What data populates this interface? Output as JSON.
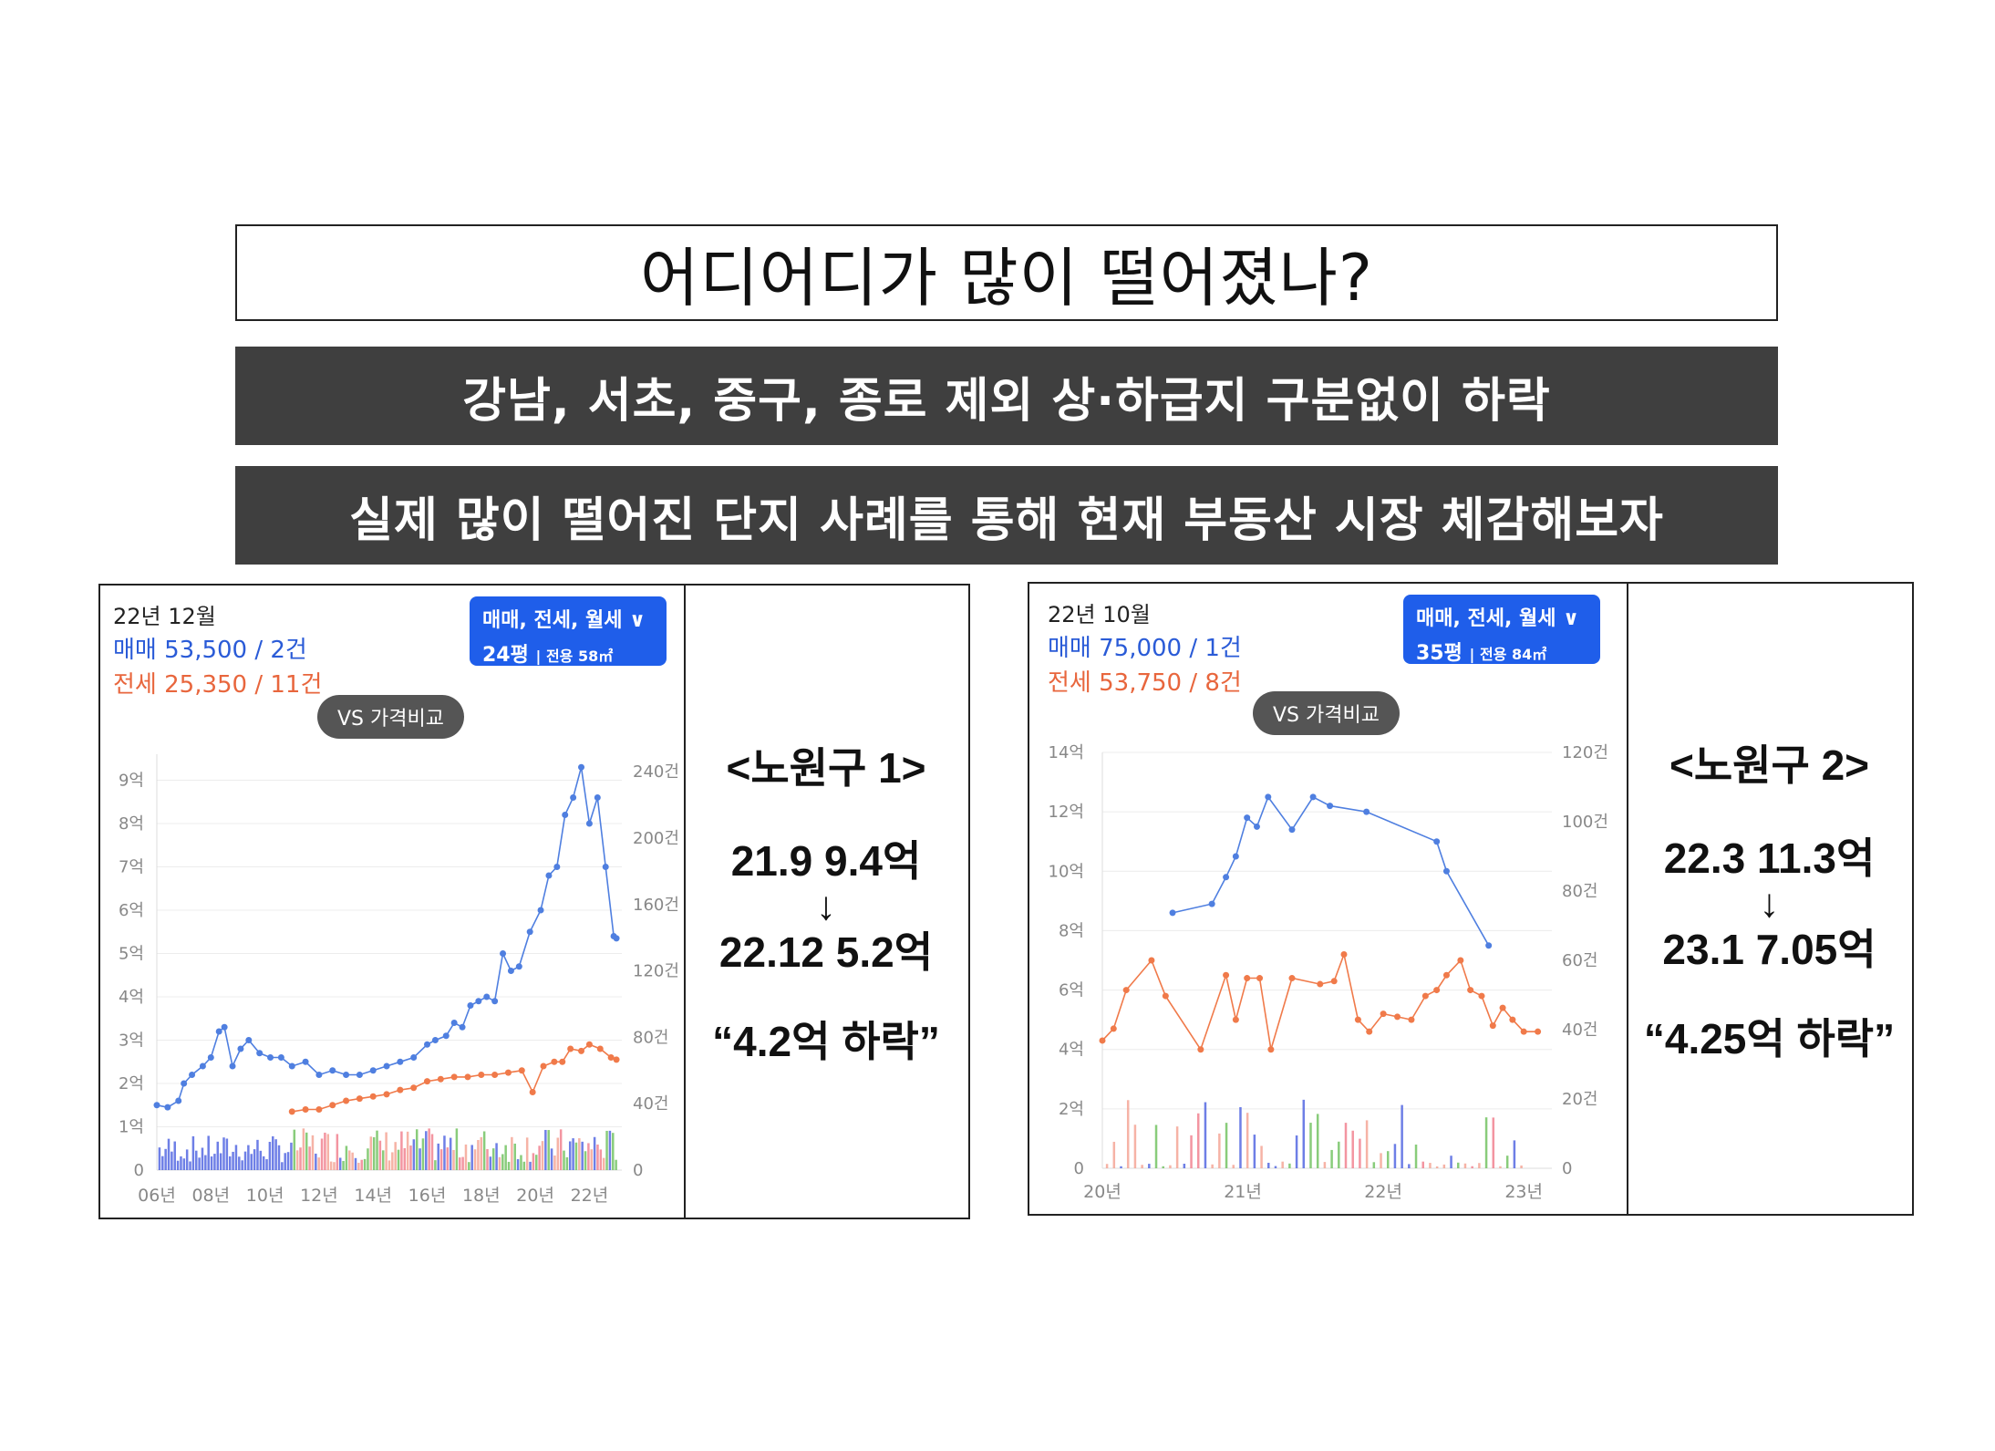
{
  "header": {
    "title": "어디어디가 많이 떨어졌나?",
    "band1": "강남, 서초, 중구, 종로 제외 상·하급지 구분없이 하락",
    "band2": "실제 많이 떨어진 단지 사례를 통해 현재 부동산 시장 체감해보자"
  },
  "colors": {
    "sale": "#4f7fe0",
    "jeonse": "#f07a4a",
    "selector": "#1f5eea",
    "band": "#3f3f3f"
  },
  "panels": [
    {
      "date": "22년 12월",
      "sale_label": "매매 53,500 / 2건",
      "jeonse_label": "전세 25,350 / 11건",
      "selector_line1": "매매, 전세, 월세 ∨",
      "selector_size": "24평",
      "selector_area": "| 전용 58㎡",
      "vs_button": "VS 가격비교",
      "note": {
        "header": "<노원구 1>",
        "from": "21.9 9.4억",
        "arrow": "↓",
        "to": "22.12 5.2억",
        "drop": "“4.2억 하락”"
      }
    },
    {
      "date": "22년 10월",
      "sale_label": "매매 75,000 / 1건",
      "jeonse_label": "전세 53,750 / 8건",
      "selector_line1": "매매, 전세, 월세 ∨",
      "selector_size": "35평",
      "selector_area": "| 전용 84㎡",
      "vs_button": "VS 가격비교",
      "note": {
        "header": "<노원구 2>",
        "from": "22.3 11.3억",
        "arrow": "↓",
        "to": "23.1 7.05억",
        "drop": "“4.25억 하락”"
      }
    }
  ],
  "chart_data": [
    {
      "type": "line",
      "y_left_ticks": [
        "0",
        "1억",
        "2억",
        "3억",
        "4억",
        "5억",
        "6억",
        "7억",
        "8억",
        "9억"
      ],
      "y_right_ticks": [
        "0",
        "40건",
        "80건",
        "120건",
        "160건",
        "200건",
        "240건"
      ],
      "x_ticks": [
        "06년",
        "08년",
        "10년",
        "12년",
        "14년",
        "16년",
        "18년",
        "20년",
        "22년"
      ],
      "xlim": [
        2006,
        2023.2
      ],
      "ylim": [
        0,
        9.6
      ],
      "y2lim": [
        0,
        240
      ],
      "series": [
        {
          "name": "매매",
          "points": [
            [
              2006.0,
              1.5
            ],
            [
              2006.4,
              1.45
            ],
            [
              2006.8,
              1.6
            ],
            [
              2007.0,
              2.0
            ],
            [
              2007.3,
              2.2
            ],
            [
              2007.7,
              2.4
            ],
            [
              2008.0,
              2.6
            ],
            [
              2008.3,
              3.2
            ],
            [
              2008.5,
              3.3
            ],
            [
              2008.8,
              2.4
            ],
            [
              2009.1,
              2.8
            ],
            [
              2009.4,
              3.0
            ],
            [
              2009.8,
              2.7
            ],
            [
              2010.2,
              2.6
            ],
            [
              2010.6,
              2.6
            ],
            [
              2011.0,
              2.4
            ],
            [
              2011.5,
              2.5
            ],
            [
              2012.0,
              2.2
            ],
            [
              2012.5,
              2.3
            ],
            [
              2013.0,
              2.2
            ],
            [
              2013.5,
              2.2
            ],
            [
              2014.0,
              2.3
            ],
            [
              2014.5,
              2.4
            ],
            [
              2015.0,
              2.5
            ],
            [
              2015.5,
              2.6
            ],
            [
              2016.0,
              2.9
            ],
            [
              2016.3,
              3.0
            ],
            [
              2016.7,
              3.1
            ],
            [
              2017.0,
              3.4
            ],
            [
              2017.3,
              3.3
            ],
            [
              2017.6,
              3.8
            ],
            [
              2017.9,
              3.9
            ],
            [
              2018.2,
              4.0
            ],
            [
              2018.5,
              3.9
            ],
            [
              2018.8,
              5.0
            ],
            [
              2019.1,
              4.6
            ],
            [
              2019.4,
              4.7
            ],
            [
              2019.8,
              5.5
            ],
            [
              2020.2,
              6.0
            ],
            [
              2020.5,
              6.8
            ],
            [
              2020.8,
              7.0
            ],
            [
              2021.1,
              8.2
            ],
            [
              2021.4,
              8.6
            ],
            [
              2021.7,
              9.3
            ],
            [
              2022.0,
              8.0
            ],
            [
              2022.3,
              8.6
            ],
            [
              2022.6,
              7.0
            ],
            [
              2022.9,
              5.4
            ],
            [
              2023.0,
              5.35
            ]
          ]
        },
        {
          "name": "전세",
          "points": [
            [
              2011.0,
              1.35
            ],
            [
              2011.5,
              1.4
            ],
            [
              2012.0,
              1.4
            ],
            [
              2012.5,
              1.5
            ],
            [
              2013.0,
              1.6
            ],
            [
              2013.5,
              1.65
            ],
            [
              2014.0,
              1.7
            ],
            [
              2014.5,
              1.75
            ],
            [
              2015.0,
              1.85
            ],
            [
              2015.5,
              1.9
            ],
            [
              2016.0,
              2.05
            ],
            [
              2016.5,
              2.1
            ],
            [
              2017.0,
              2.15
            ],
            [
              2017.5,
              2.15
            ],
            [
              2018.0,
              2.2
            ],
            [
              2018.5,
              2.2
            ],
            [
              2019.0,
              2.25
            ],
            [
              2019.5,
              2.3
            ],
            [
              2019.9,
              1.8
            ],
            [
              2020.3,
              2.4
            ],
            [
              2020.7,
              2.5
            ],
            [
              2021.0,
              2.5
            ],
            [
              2021.3,
              2.8
            ],
            [
              2021.7,
              2.75
            ],
            [
              2022.0,
              2.9
            ],
            [
              2022.4,
              2.8
            ],
            [
              2022.8,
              2.6
            ],
            [
              2023.0,
              2.55
            ]
          ]
        }
      ]
    },
    {
      "type": "line",
      "y_left_ticks": [
        "0",
        "2억",
        "4억",
        "6억",
        "8억",
        "10억",
        "12억",
        "14억"
      ],
      "y_right_ticks": [
        "0",
        "20건",
        "40건",
        "60건",
        "80건",
        "100건",
        "120건"
      ],
      "x_ticks": [
        "20년",
        "21년",
        "22년",
        "23년"
      ],
      "xlim": [
        2020.0,
        2023.2
      ],
      "ylim": [
        0,
        14
      ],
      "y2lim": [
        0,
        120
      ],
      "series": [
        {
          "name": "매매",
          "points": [
            [
              2020.5,
              8.6
            ],
            [
              2020.78,
              8.9
            ],
            [
              2020.88,
              9.8
            ],
            [
              2020.95,
              10.5
            ],
            [
              2021.03,
              11.8
            ],
            [
              2021.1,
              11.5
            ],
            [
              2021.18,
              12.5
            ],
            [
              2021.35,
              11.4
            ],
            [
              2021.5,
              12.5
            ],
            [
              2021.62,
              12.2
            ],
            [
              2021.88,
              12.0
            ],
            [
              2022.38,
              11.0
            ],
            [
              2022.45,
              10.0
            ],
            [
              2022.75,
              7.5
            ]
          ]
        },
        {
          "name": "전세",
          "points": [
            [
              2020.0,
              4.3
            ],
            [
              2020.08,
              4.7
            ],
            [
              2020.17,
              6.0
            ],
            [
              2020.35,
              7.0
            ],
            [
              2020.45,
              5.8
            ],
            [
              2020.7,
              4.0
            ],
            [
              2020.88,
              6.5
            ],
            [
              2020.95,
              5.0
            ],
            [
              2021.03,
              6.4
            ],
            [
              2021.12,
              6.4
            ],
            [
              2021.2,
              4.0
            ],
            [
              2021.35,
              6.4
            ],
            [
              2021.55,
              6.2
            ],
            [
              2021.65,
              6.3
            ],
            [
              2021.72,
              7.2
            ],
            [
              2021.82,
              5.0
            ],
            [
              2021.9,
              4.6
            ],
            [
              2022.0,
              5.2
            ],
            [
              2022.1,
              5.1
            ],
            [
              2022.2,
              5.0
            ],
            [
              2022.3,
              5.8
            ],
            [
              2022.38,
              6.0
            ],
            [
              2022.45,
              6.5
            ],
            [
              2022.55,
              7.0
            ],
            [
              2022.62,
              6.0
            ],
            [
              2022.7,
              5.8
            ],
            [
              2022.78,
              4.8
            ],
            [
              2022.85,
              5.4
            ],
            [
              2022.92,
              5.0
            ],
            [
              2023.0,
              4.6
            ],
            [
              2023.1,
              4.6
            ]
          ]
        }
      ]
    }
  ]
}
